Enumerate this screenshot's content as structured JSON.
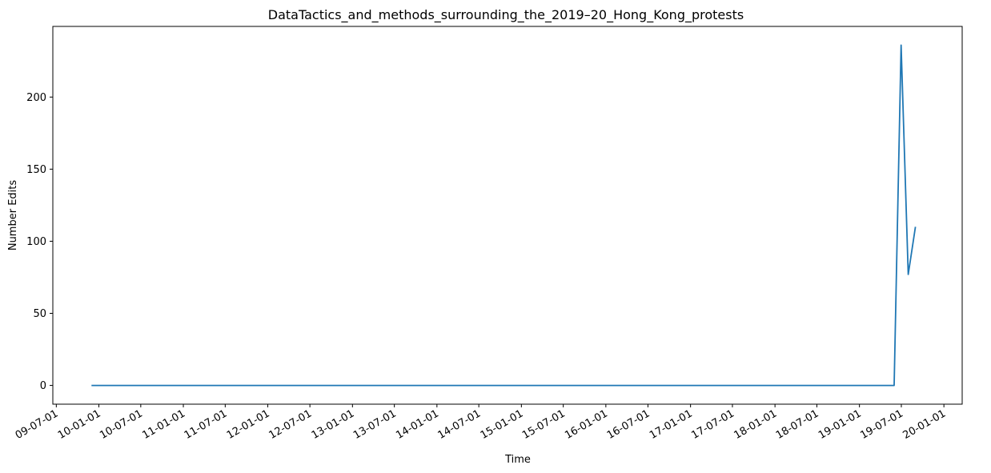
{
  "chart_data": {
    "type": "line",
    "title": "DataTactics_and_methods_surrounding_the_2019–20_Hong_Kong_protests",
    "xlabel": "Time",
    "ylabel": "Number Edits",
    "ylim": [
      -13,
      249
    ],
    "xlim": [
      "2009-06-16",
      "2020-03-20"
    ],
    "yticks": [
      0,
      50,
      100,
      150,
      200
    ],
    "xticks": [
      {
        "date": "2009-07-01",
        "label": "09-07-01"
      },
      {
        "date": "2010-01-01",
        "label": "10-01-01"
      },
      {
        "date": "2010-07-01",
        "label": "10-07-01"
      },
      {
        "date": "2011-01-01",
        "label": "11-01-01"
      },
      {
        "date": "2011-07-01",
        "label": "11-07-01"
      },
      {
        "date": "2012-01-01",
        "label": "12-01-01"
      },
      {
        "date": "2012-07-01",
        "label": "12-07-01"
      },
      {
        "date": "2013-01-01",
        "label": "13-01-01"
      },
      {
        "date": "2013-07-01",
        "label": "13-07-01"
      },
      {
        "date": "2014-01-01",
        "label": "14-01-01"
      },
      {
        "date": "2014-07-01",
        "label": "14-07-01"
      },
      {
        "date": "2015-01-01",
        "label": "15-01-01"
      },
      {
        "date": "2015-07-01",
        "label": "15-07-01"
      },
      {
        "date": "2016-01-01",
        "label": "16-01-01"
      },
      {
        "date": "2016-07-01",
        "label": "16-07-01"
      },
      {
        "date": "2017-01-01",
        "label": "17-01-01"
      },
      {
        "date": "2017-07-01",
        "label": "17-07-01"
      },
      {
        "date": "2018-01-01",
        "label": "18-01-01"
      },
      {
        "date": "2018-07-01",
        "label": "18-07-01"
      },
      {
        "date": "2019-01-01",
        "label": "19-01-01"
      },
      {
        "date": "2019-07-01",
        "label": "19-07-01"
      },
      {
        "date": "2020-01-01",
        "label": "20-01-01"
      }
    ],
    "series": [
      {
        "color": "#1f77b4",
        "points": [
          {
            "x": "2009-11-30",
            "y": 0
          },
          {
            "x": "2019-05-31",
            "y": 0
          },
          {
            "x": "2019-06-30",
            "y": 236
          },
          {
            "x": "2019-07-31",
            "y": 77
          },
          {
            "x": "2019-08-31",
            "y": 110
          }
        ]
      }
    ],
    "grid": false,
    "legend": false
  }
}
